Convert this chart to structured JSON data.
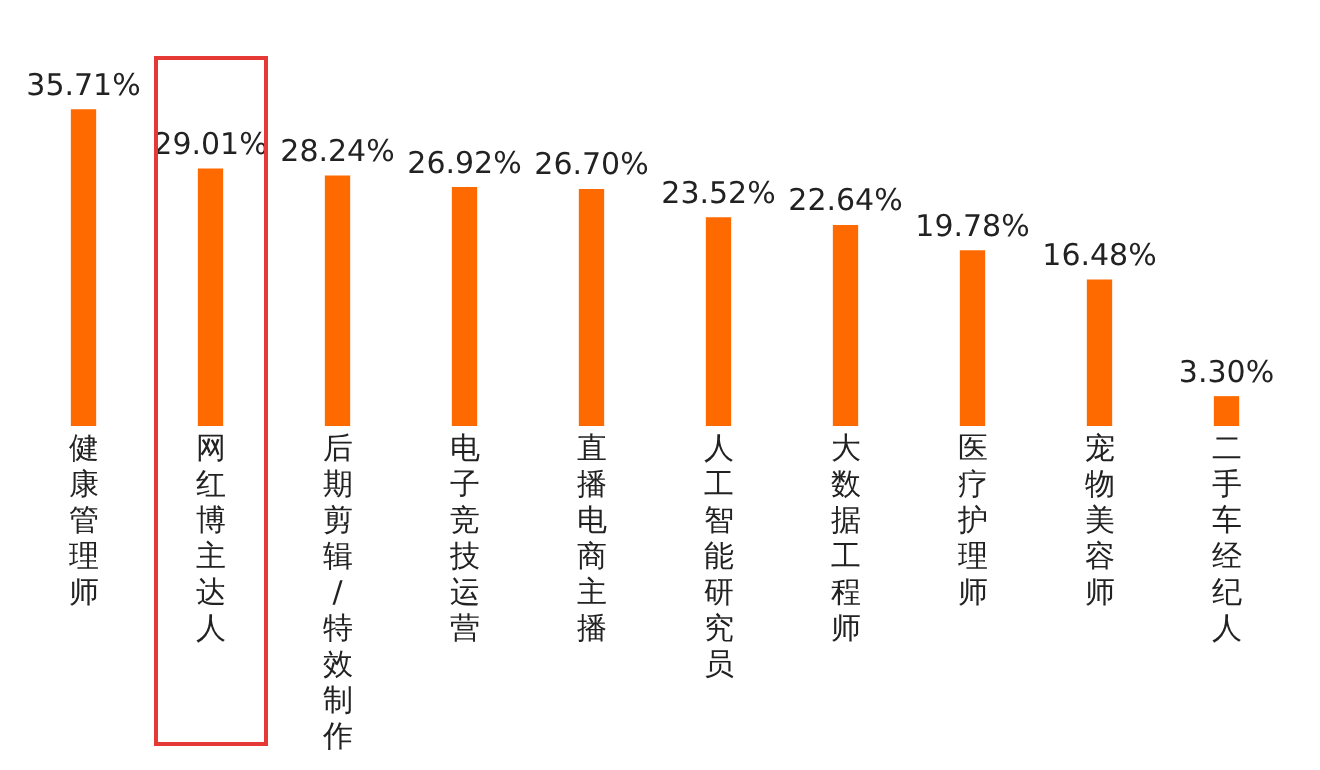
{
  "chart_data": {
    "type": "bar",
    "categories": [
      "健康管理师",
      "网红博主达人",
      "后期剪辑/特效制作",
      "电子竞技运营",
      "直播电商主播",
      "人工智能研究员",
      "大数据工程师",
      "医疗护理师",
      "宠物美容师",
      "二手车经纪人"
    ],
    "values": [
      35.71,
      29.01,
      28.24,
      26.92,
      26.7,
      23.52,
      22.64,
      19.78,
      16.48,
      3.3
    ],
    "value_labels": [
      "35.71%",
      "29.01%",
      "28.24%",
      "26.92%",
      "26.70%",
      "23.52%",
      "22.64%",
      "19.78%",
      "16.48%",
      "3.30%"
    ],
    "color": "#ff6a00",
    "grid": false,
    "legend": false
  }
}
